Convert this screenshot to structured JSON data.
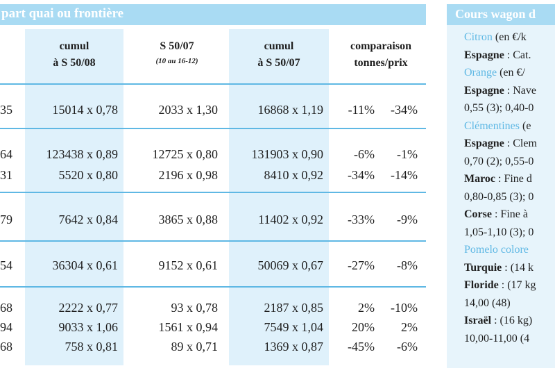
{
  "table": {
    "title": "part quai ou frontière",
    "headers": {
      "cumul_0850": [
        "cumul",
        "à S 50/08"
      ],
      "s5007": [
        "S 50/07",
        "(10 au 16-12)"
      ],
      "cumul_0750": [
        "cumul",
        "à S 50/07"
      ],
      "comparaison": [
        "comparaison",
        "tonnes/prix"
      ]
    },
    "rows": [
      {
        "first": "35",
        "c1": "15014 x 0,78",
        "c2": "2033 x 1,30",
        "c3": "16868 x 1,19",
        "p1": "-11%",
        "p2": "-34%"
      },
      {
        "first": "64",
        "c1": "123438 x 0,89",
        "c2": "12725 x 0,80",
        "c3": "131903 x 0,90",
        "p1": "-6%",
        "p2": "-1%"
      },
      {
        "first": "31",
        "c1": "5520 x 0,80",
        "c2": "2196 x 0,98",
        "c3": "8410 x 0,92",
        "p1": "-34%",
        "p2": "-14%"
      },
      {
        "first": "79",
        "c1": "7642 x 0,84",
        "c2": "3865 x 0,88",
        "c3": "11402 x 0,92",
        "p1": "-33%",
        "p2": "-9%"
      },
      {
        "first": "54",
        "c1": "36304 x 0,61",
        "c2": "9152 x 0,61",
        "c3": "50069 x 0,67",
        "p1": "-27%",
        "p2": "-8%"
      },
      {
        "first": "68",
        "c1": "2222 x 0,77",
        "c2": "93 x 0,78",
        "c3": "2187 x 0,85",
        "p1": "2%",
        "p2": "-10%"
      },
      {
        "first": "94",
        "c1": "9033 x 1,06",
        "c2": "1561 x 0,94",
        "c3": "7549 x 1,04",
        "p1": "20%",
        "p2": "2%"
      },
      {
        "first": "68",
        "c1": "758 x 0,81",
        "c2": "89 x 0,71",
        "c3": "1369 x 0,87",
        "p1": "-45%",
        "p2": "-6%"
      }
    ]
  },
  "panel": {
    "title": "Cours wagon d",
    "lines": [
      {
        "kind": "cat",
        "text": "Citron",
        "rest": " (en €/k"
      },
      {
        "kind": "bold",
        "bold": "Espagne",
        "rest": " : Cat."
      },
      {
        "kind": "cat",
        "text": "Orange",
        "rest": " (en €/"
      },
      {
        "kind": "bold",
        "bold": "Espagne",
        "rest": " : Nave"
      },
      {
        "kind": "plain",
        "text": "0,55 (3); 0,40-0"
      },
      {
        "kind": "cat",
        "text": "Clémentines",
        "rest": " (e"
      },
      {
        "kind": "bold",
        "bold": "Espagne",
        "rest": " : Clem"
      },
      {
        "kind": "plain",
        "text": "0,70 (2); 0,55-0"
      },
      {
        "kind": "bold",
        "bold": "Maroc",
        "rest": " : Fine d"
      },
      {
        "kind": "plain",
        "text": "0,80-0,85 (3); 0"
      },
      {
        "kind": "bold",
        "bold": "Corse",
        "rest": " : Fine à"
      },
      {
        "kind": "plain",
        "text": "1,05-1,10 (3); 0"
      },
      {
        "kind": "cat",
        "text": "Pomelo colore",
        "rest": ""
      },
      {
        "kind": "bold",
        "bold": "Turquie",
        "rest": " : (14 k"
      },
      {
        "kind": "bold",
        "bold": "Floride",
        "rest": " : (17 kg"
      },
      {
        "kind": "plain",
        "text": "14,00 (48)"
      },
      {
        "kind": "bold",
        "bold": "Israël",
        "rest": " : (16 kg)"
      },
      {
        "kind": "plain",
        "text": "10,00-11,00 (4"
      }
    ]
  }
}
